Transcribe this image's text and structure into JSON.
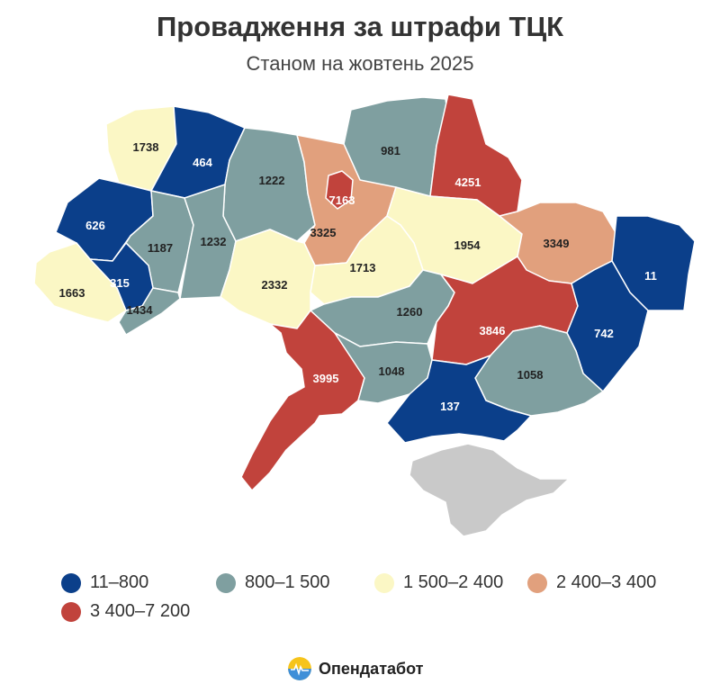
{
  "title": "Провадження за штрафи ТЦК",
  "subtitle": "Станом на жовтень 2025",
  "colors": {
    "c1": "#0b3f8a",
    "c2": "#7f9fa0",
    "c3": "#fbf7c5",
    "c4": "#e1a07d",
    "c5": "#c1433c",
    "crimea": "#c9c9c9",
    "border": "#ffffff"
  },
  "legend": [
    {
      "label": "11–800",
      "color": "#0b3f8a"
    },
    {
      "label": "800–1 500",
      "color": "#7f9fa0"
    },
    {
      "label": "1 500–2 400",
      "color": "#fbf7c5"
    },
    {
      "label": "2 400–3 400",
      "color": "#e1a07d"
    },
    {
      "label": "3 400–7 200",
      "color": "#c1433c"
    }
  ],
  "regions": [
    {
      "value": "1738",
      "bin": "c3"
    },
    {
      "value": "464",
      "bin": "c1"
    },
    {
      "value": "1222",
      "bin": "c2"
    },
    {
      "value": "981",
      "bin": "c2"
    },
    {
      "value": "4251",
      "bin": "c5"
    },
    {
      "value": "7163",
      "bin": "c5"
    },
    {
      "value": "3325",
      "bin": "c4"
    },
    {
      "value": "626",
      "bin": "c1"
    },
    {
      "value": "1187",
      "bin": "c2"
    },
    {
      "value": "1232",
      "bin": "c2"
    },
    {
      "value": "1954",
      "bin": "c3"
    },
    {
      "value": "3349",
      "bin": "c4"
    },
    {
      "value": "11",
      "bin": "c1"
    },
    {
      "value": "1663",
      "bin": "c3"
    },
    {
      "value": "315",
      "bin": "c1"
    },
    {
      "value": "1434",
      "bin": "c2"
    },
    {
      "value": "2332",
      "bin": "c3"
    },
    {
      "value": "1713",
      "bin": "c3"
    },
    {
      "value": "1260",
      "bin": "c2"
    },
    {
      "value": "3846",
      "bin": "c5"
    },
    {
      "value": "742",
      "bin": "c1"
    },
    {
      "value": "3995",
      "bin": "c5"
    },
    {
      "value": "1048",
      "bin": "c2"
    },
    {
      "value": "1058",
      "bin": "c2"
    },
    {
      "value": "137",
      "bin": "c1"
    }
  ],
  "brand": "Опендатабот"
}
